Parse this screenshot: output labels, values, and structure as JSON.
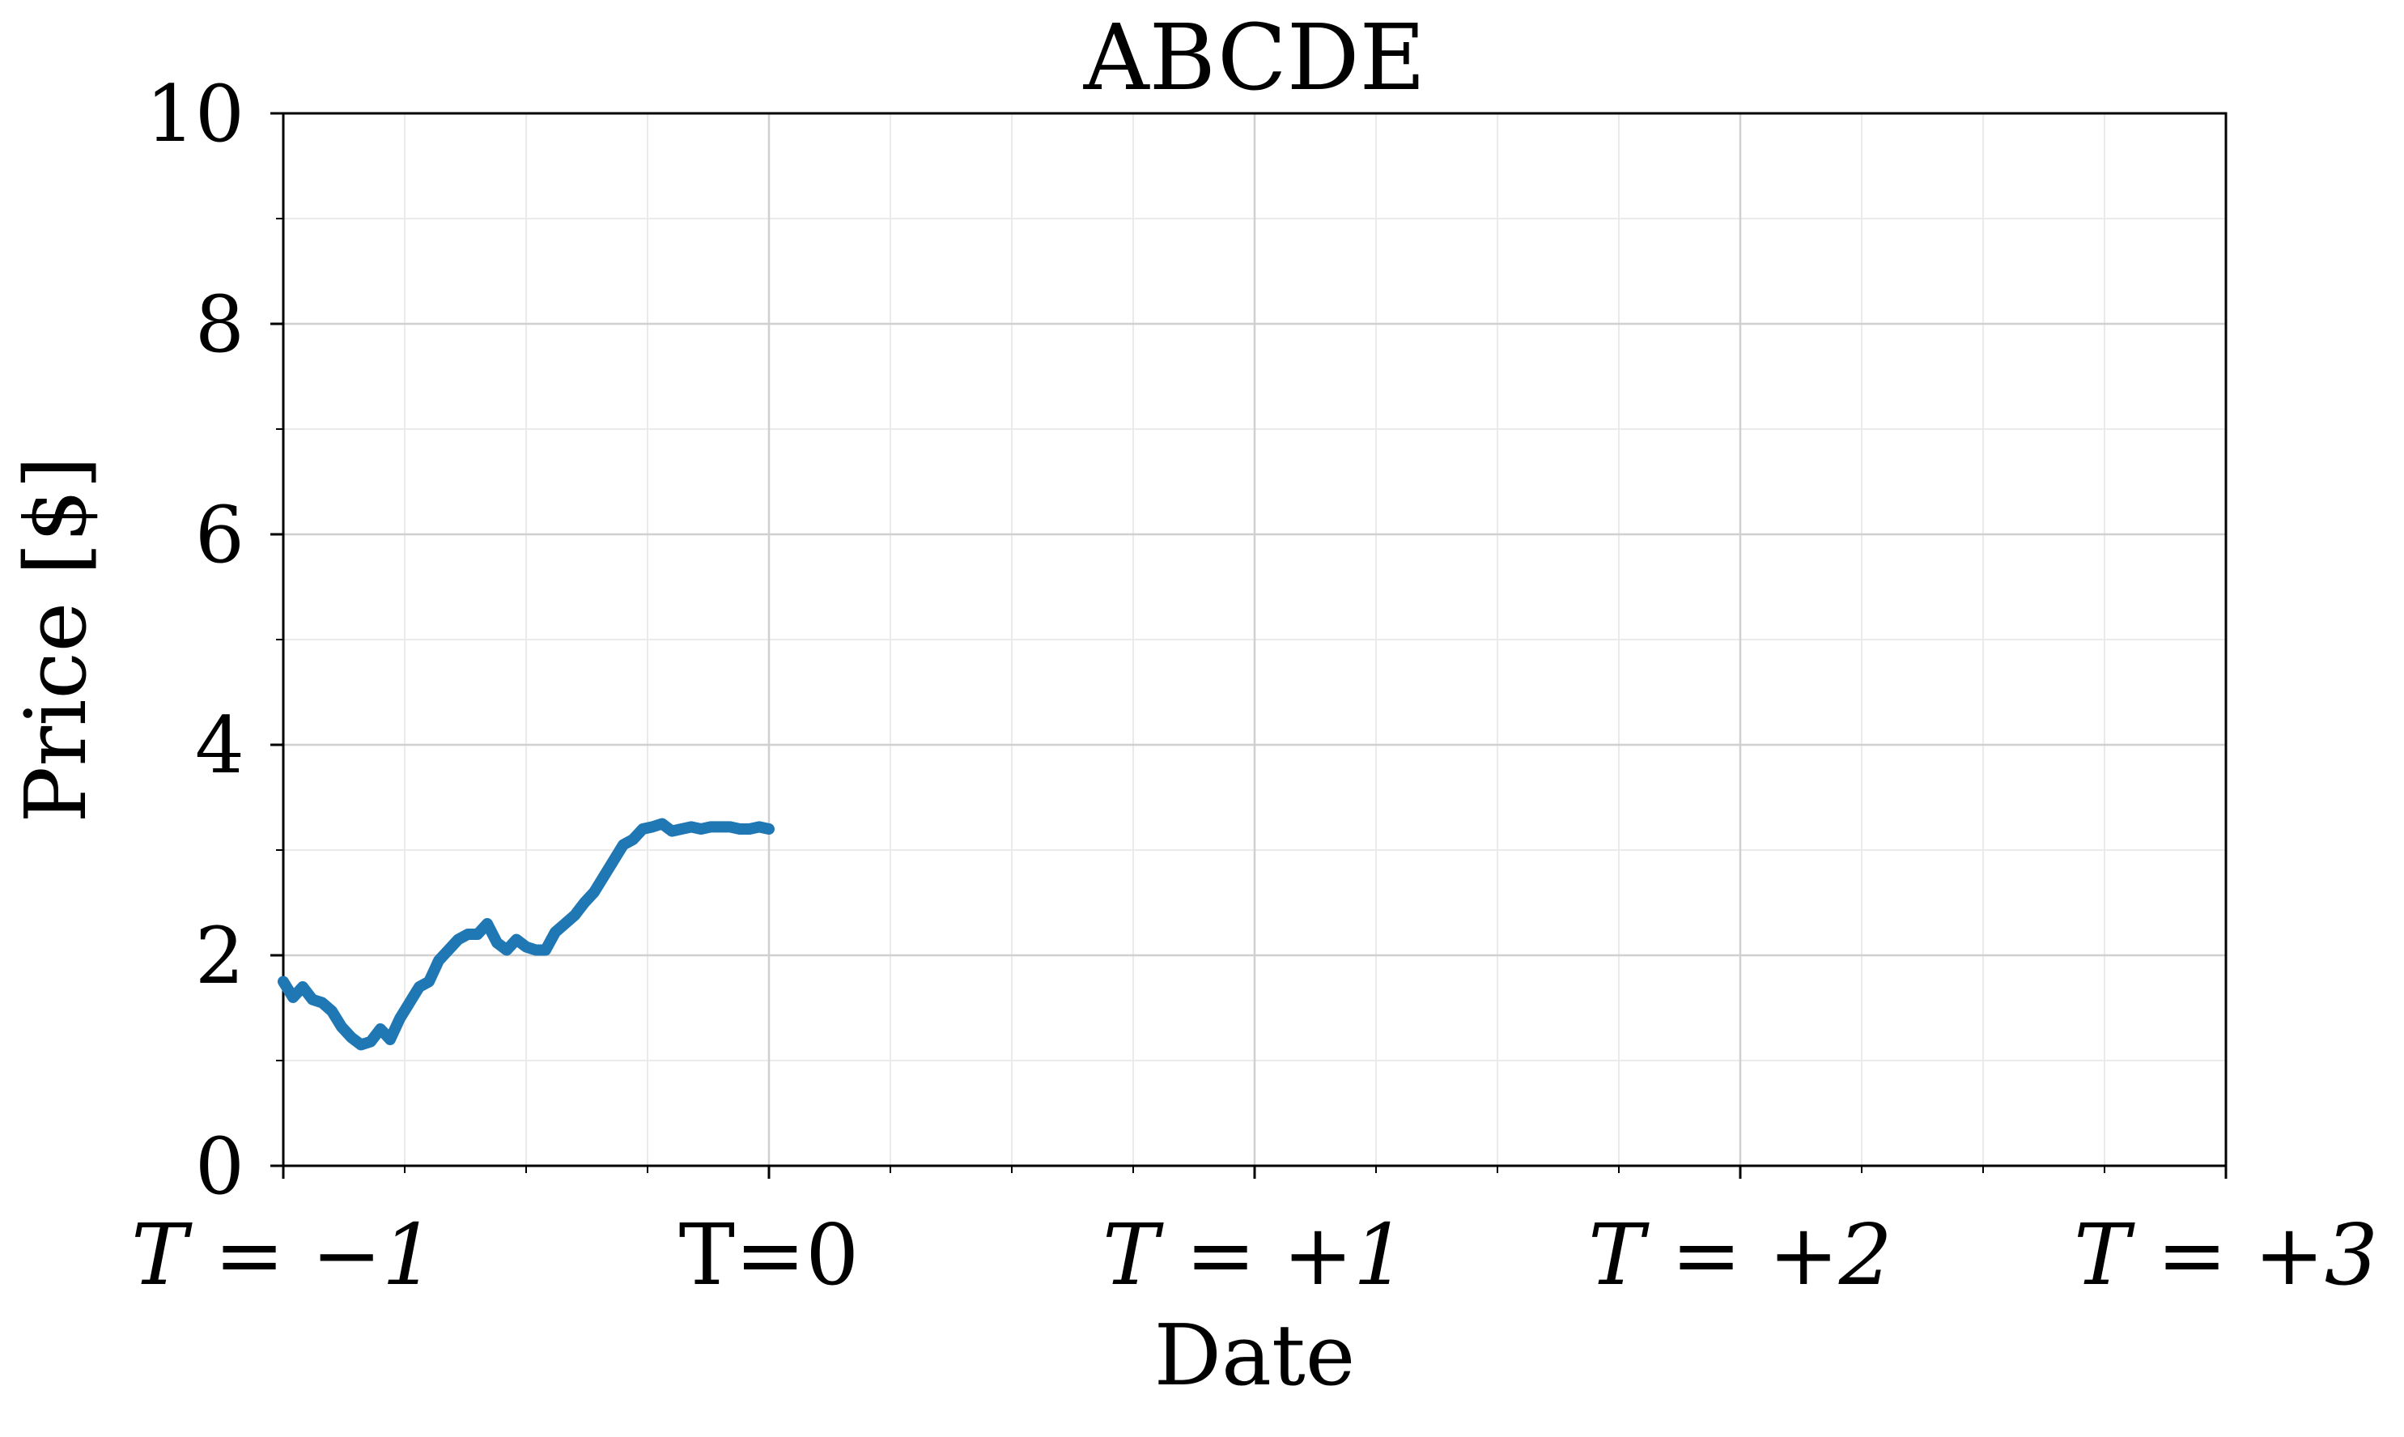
{
  "chart_data": {
    "type": "line",
    "title": "ABCDE",
    "xlabel": "Date",
    "ylabel": "Price [$]",
    "ylim": [
      0,
      10
    ],
    "xlim": [
      -1,
      3
    ],
    "grid": true,
    "legend": "none",
    "y_ticks": [
      {
        "value": 0,
        "label": "0"
      },
      {
        "value": 2,
        "label": "2"
      },
      {
        "value": 4,
        "label": "4"
      },
      {
        "value": 6,
        "label": "6"
      },
      {
        "value": 8,
        "label": "8"
      },
      {
        "value": 10,
        "label": "10"
      }
    ],
    "x_ticks": [
      {
        "value": -1,
        "label": "T = −1",
        "italic": true
      },
      {
        "value": 0,
        "label": "T=0",
        "italic": false
      },
      {
        "value": 1,
        "label": "T = +1",
        "italic": true
      },
      {
        "value": 2,
        "label": "T = +2",
        "italic": true
      },
      {
        "value": 3,
        "label": "T = +3",
        "italic": true
      }
    ],
    "series": [
      {
        "color": "#1f77b4",
        "x": [
          -1.0,
          -0.98,
          -0.96,
          -0.94,
          -0.92,
          -0.9,
          -0.88,
          -0.86,
          -0.84,
          -0.82,
          -0.8,
          -0.78,
          -0.76,
          -0.74,
          -0.72,
          -0.7,
          -0.68,
          -0.66,
          -0.64,
          -0.62,
          -0.6,
          -0.58,
          -0.56,
          -0.54,
          -0.52,
          -0.5,
          -0.48,
          -0.46,
          -0.44,
          -0.42,
          -0.4,
          -0.38,
          -0.36,
          -0.34,
          -0.32,
          -0.3,
          -0.28,
          -0.26,
          -0.24,
          -0.22,
          -0.2,
          -0.18,
          -0.16,
          -0.14,
          -0.12,
          -0.1,
          -0.08,
          -0.06,
          -0.04,
          -0.02,
          0.0
        ],
        "y": [
          1.75,
          1.6,
          1.7,
          1.58,
          1.55,
          1.47,
          1.32,
          1.22,
          1.15,
          1.18,
          1.3,
          1.2,
          1.4,
          1.55,
          1.7,
          1.75,
          1.95,
          2.05,
          2.15,
          2.2,
          2.2,
          2.3,
          2.12,
          2.05,
          2.15,
          2.08,
          2.05,
          2.05,
          2.22,
          2.3,
          2.38,
          2.5,
          2.6,
          2.75,
          2.9,
          3.05,
          3.1,
          3.2,
          3.22,
          3.25,
          3.18,
          3.2,
          3.22,
          3.2,
          3.22,
          3.22,
          3.22,
          3.2,
          3.2,
          3.22,
          3.2
        ]
      }
    ]
  }
}
